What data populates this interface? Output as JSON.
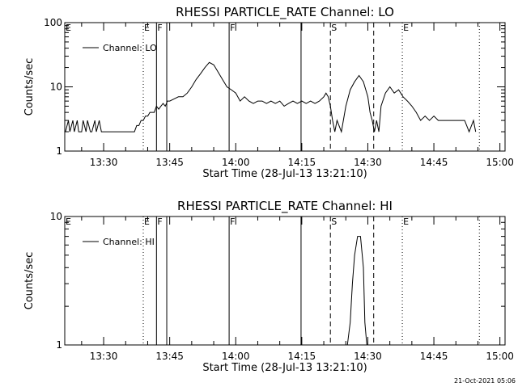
{
  "chart_data": [
    {
      "type": "line",
      "title": "RHESSI PARTICLE_RATE Channel: LO",
      "xlabel": "Start Time (28-Jul-13 13:21:10)",
      "ylabel": "Counts/sec",
      "yscale": "log",
      "ylim": [
        1,
        100
      ],
      "yticks": [
        {
          "value": 1,
          "label": "1"
        },
        {
          "value": 10,
          "label": "10"
        },
        {
          "value": 100,
          "label": "100"
        }
      ],
      "xlim": [
        "13:21:10",
        "15:01:10"
      ],
      "xticks": [
        "13:30",
        "13:45",
        "14:00",
        "14:15",
        "14:30",
        "14:45",
        "15:00"
      ],
      "grid": false,
      "legend": "top-left",
      "series": [
        {
          "name": "Channel: LO",
          "x": [
            "13:21:20",
            "13:22:00",
            "13:22:20",
            "13:23:00",
            "13:23:20",
            "13:24:00",
            "13:24:20",
            "13:25:00",
            "13:25:20",
            "13:26:00",
            "13:26:20",
            "13:27:00",
            "13:27:20",
            "13:28:00",
            "13:28:20",
            "13:29:00",
            "13:29:30",
            "13:30:00",
            "13:31:00",
            "13:32:00",
            "13:33:00",
            "13:34:00",
            "13:35:00",
            "13:36:00",
            "13:37:00",
            "13:37:30",
            "13:38:00",
            "13:38:30",
            "13:39:00",
            "13:39:30",
            "13:40:00",
            "13:40:30",
            "13:41:00",
            "13:41:30",
            "13:42:00",
            "13:42:30",
            "13:43:00",
            "13:43:30",
            "13:44:00",
            "13:44:30",
            "13:45:00",
            "13:46:00",
            "13:47:00",
            "13:48:00",
            "13:49:00",
            "13:50:00",
            "13:51:00",
            "13:52:00",
            "13:53:00",
            "13:54:00",
            "13:55:00",
            "13:56:00",
            "13:57:00",
            "13:58:00",
            "13:59:00",
            "14:00:00",
            "14:01:00",
            "14:02:00",
            "14:03:00",
            "14:04:00",
            "14:05:00",
            "14:06:00",
            "14:07:00",
            "14:08:00",
            "14:09:00",
            "14:10:00",
            "14:11:00",
            "14:12:00",
            "14:13:00",
            "14:14:00",
            "14:15:00",
            "14:16:00",
            "14:17:00",
            "14:18:00",
            "14:19:00",
            "14:20:00",
            "14:20:30",
            "14:21:00",
            "14:21:30",
            "14:22:00",
            "14:22:30",
            "14:23:00",
            "14:24:00",
            "14:25:00",
            "14:26:00",
            "14:27:00",
            "14:28:00",
            "14:29:00",
            "14:30:00",
            "14:30:30",
            "14:31:00",
            "14:31:30",
            "14:32:00",
            "14:32:30",
            "14:33:00",
            "14:34:00",
            "14:35:00",
            "14:36:00",
            "14:37:00",
            "14:38:00",
            "14:39:00",
            "14:40:00",
            "14:41:00",
            "14:42:00",
            "14:43:00",
            "14:44:00",
            "14:45:00",
            "14:46:00",
            "14:47:00",
            "14:48:00",
            "14:49:00",
            "14:50:00",
            "14:51:00",
            "14:52:00",
            "14:53:00",
            "14:54:00",
            "14:54:30"
          ],
          "y": [
            2,
            3,
            2,
            3,
            2,
            3,
            2,
            2,
            3,
            2,
            3,
            2,
            2,
            3,
            2,
            3,
            2,
            2,
            2,
            2,
            2,
            2,
            2,
            2,
            2,
            2.5,
            2.5,
            3,
            3,
            3.5,
            3.5,
            4,
            4,
            4,
            5,
            4.5,
            5,
            5.5,
            5,
            6,
            6,
            6.5,
            7,
            7,
            8,
            10,
            13,
            16,
            20,
            24,
            22,
            17,
            13,
            10,
            9,
            8,
            6,
            7,
            6,
            5.5,
            6,
            6,
            5.5,
            6,
            5.5,
            6,
            5,
            5.5,
            6,
            5.5,
            6,
            5.5,
            6,
            5.5,
            6,
            7,
            8,
            7,
            5,
            3,
            2,
            3,
            2,
            5,
            9,
            12,
            15,
            12,
            7,
            4,
            3,
            2,
            3,
            2,
            5,
            8,
            10,
            8,
            9,
            7,
            6,
            5,
            4,
            3,
            3.5,
            3,
            3.5,
            3,
            3,
            3,
            3,
            3,
            3,
            3,
            2,
            3,
            2
          ]
        }
      ],
      "markers": [
        {
          "label": "E",
          "time": "13:21:10",
          "style": "dotted"
        },
        {
          "label": "E",
          "time": "13:39:00",
          "style": "dotted"
        },
        {
          "label": "F",
          "time": "13:42:00",
          "style": "solid"
        },
        {
          "label": "",
          "time": "13:44:20",
          "style": "solid"
        },
        {
          "label": "F",
          "time": "13:58:30",
          "style": "solid"
        },
        {
          "label": "",
          "time": "14:14:50",
          "style": "solid"
        },
        {
          "label": "S",
          "time": "14:21:30",
          "style": "dashed"
        },
        {
          "label": "",
          "time": "14:31:20",
          "style": "dashed"
        },
        {
          "label": "E",
          "time": "14:37:50",
          "style": "dotted"
        },
        {
          "label": "",
          "time": "14:55:20",
          "style": "dotted"
        }
      ]
    },
    {
      "type": "line",
      "title": "RHESSI PARTICLE_RATE Channel: HI",
      "xlabel": "Start Time (28-Jul-13 13:21:10)",
      "ylabel": "Counts/sec",
      "yscale": "log",
      "ylim": [
        1,
        10
      ],
      "yticks": [
        {
          "value": 1,
          "label": "1"
        },
        {
          "value": 10,
          "label": "10"
        }
      ],
      "xlim": [
        "13:21:10",
        "15:01:10"
      ],
      "xticks": [
        "13:30",
        "13:45",
        "14:00",
        "14:15",
        "14:30",
        "14:45",
        "15:00"
      ],
      "grid": false,
      "legend": "top-left",
      "series": [
        {
          "name": "Channel: HI",
          "x": [
            "14:25:00",
            "14:26:00",
            "14:26:30",
            "14:27:00",
            "14:27:40",
            "14:28:00",
            "14:28:20",
            "14:29:00",
            "14:29:20",
            "14:30:00"
          ],
          "y": [
            0.8,
            1.5,
            3,
            5,
            7,
            7,
            7,
            4,
            1.5,
            0.8
          ]
        }
      ],
      "markers": [
        {
          "label": "E",
          "time": "13:21:10",
          "style": "dotted"
        },
        {
          "label": "E",
          "time": "13:39:00",
          "style": "dotted"
        },
        {
          "label": "F",
          "time": "13:42:00",
          "style": "solid"
        },
        {
          "label": "",
          "time": "13:44:20",
          "style": "solid"
        },
        {
          "label": "F",
          "time": "13:58:30",
          "style": "solid"
        },
        {
          "label": "",
          "time": "14:14:50",
          "style": "solid"
        },
        {
          "label": "S",
          "time": "14:21:30",
          "style": "dashed"
        },
        {
          "label": "",
          "time": "14:31:20",
          "style": "dashed"
        },
        {
          "label": "E",
          "time": "14:37:50",
          "style": "dotted"
        },
        {
          "label": "",
          "time": "14:55:20",
          "style": "dotted"
        }
      ]
    }
  ],
  "footer": {
    "timestamp": "21-Oct-2021 05:06"
  },
  "colors": {
    "background": "#ffffff",
    "foreground": "#000000"
  }
}
